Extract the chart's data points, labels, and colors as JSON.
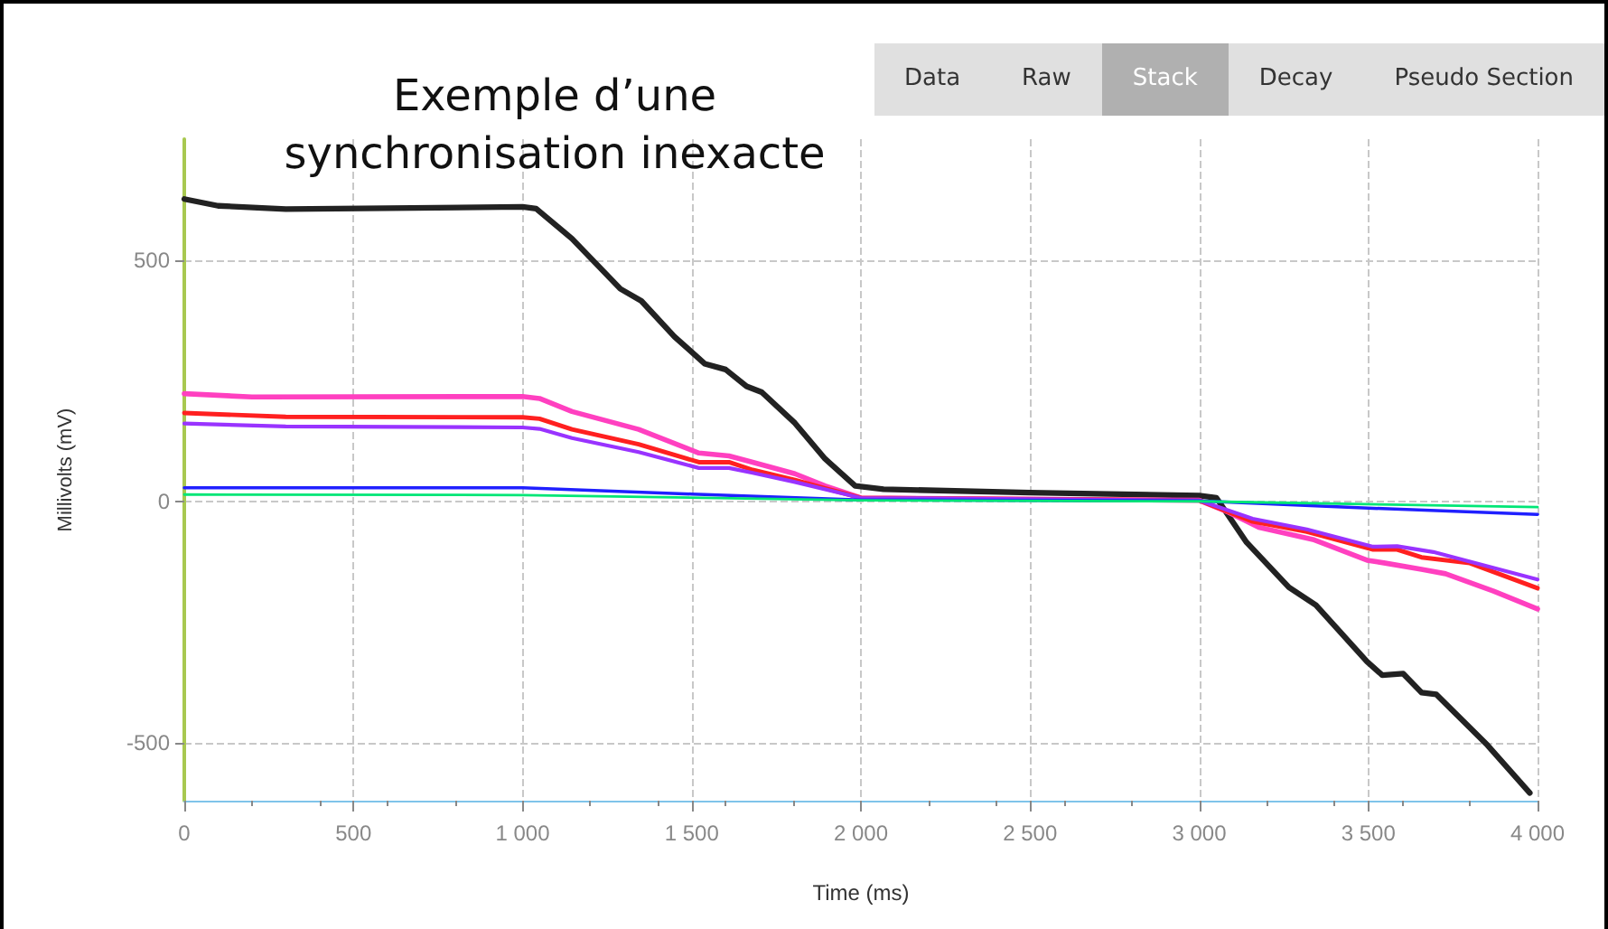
{
  "chart_data": {
    "type": "line",
    "title": "Exemple d’une\nsynchronisation inexacte",
    "xlabel": "Time (ms)",
    "ylabel": "Millivolts (mV)",
    "annotations": [
      "Data",
      "Raw",
      "Stack",
      "Decay",
      "Pseudo Section"
    ],
    "xlim": [
      0,
      4000
    ],
    "xticks": [
      0,
      500,
      {
        "value": 1000,
        "label": "1 000"
      },
      {
        "value": 1500,
        "label": "1 500"
      },
      {
        "value": 2000,
        "label": "2 000"
      },
      {
        "value": 2500,
        "label": "2 500"
      },
      {
        "value": 3000,
        "label": "3 000"
      },
      {
        "value": 3500,
        "label": "3 500"
      },
      {
        "value": 4000,
        "label": "4 000"
      }
    ],
    "ylim": [
      -620,
      750
    ],
    "yticks": [
      -500,
      0,
      500
    ],
    "grid": true,
    "line_style": "solid",
    "marker": "none",
    "series": [
      {
        "color": "#222222",
        "x": [
          0,
          100,
          300,
          600,
          1000,
          1040,
          1146,
          1289,
          1351,
          1449,
          1538,
          1600,
          1662,
          1707,
          1805,
          1894,
          1983,
          2067,
          2500,
          3000,
          3051,
          3140,
          3265,
          3345,
          3496,
          3541,
          3603,
          3657,
          3701,
          3852,
          3977
        ],
        "values": [
          626,
          612,
          605,
          607,
          610,
          606,
          544,
          440,
          415,
          341,
          285,
          273,
          238,
          226,
          162,
          88,
          32,
          25,
          18,
          12,
          7,
          -85,
          -178,
          -215,
          -332,
          -360,
          -357,
          -396,
          -400,
          -505,
          -604
        ]
      },
      {
        "color": "#ff40c0",
        "x": [
          0,
          200,
          1000,
          1050,
          1146,
          1343,
          1521,
          1610,
          1680,
          1805,
          1894,
          2000,
          3000,
          3087,
          3176,
          3336,
          3496,
          3550,
          3657,
          3728,
          3870,
          4000
        ],
        "values": [
          223,
          216,
          217,
          213,
          186,
          149,
          100,
          94,
          81,
          57,
          32,
          7,
          2,
          -23,
          -54,
          -79,
          -122,
          -128,
          -141,
          -150,
          -186,
          -223
        ]
      },
      {
        "color": "#ff2020",
        "x": [
          0,
          300,
          1000,
          1050,
          1146,
          1343,
          1521,
          1610,
          1680,
          1805,
          1894,
          2000,
          3000,
          3158,
          3318,
          3514,
          3585,
          3657,
          3800,
          4000
        ],
        "values": [
          183,
          175,
          174,
          171,
          149,
          118,
          81,
          81,
          65,
          44,
          27,
          7,
          2,
          -42,
          -63,
          -100,
          -100,
          -116,
          -128,
          -180
        ]
      },
      {
        "color": "#9933ff",
        "x": [
          0,
          300,
          1000,
          1050,
          1146,
          1343,
          1521,
          1610,
          1680,
          1805,
          2000,
          3000,
          3158,
          3318,
          3514,
          3585,
          3692,
          4000
        ],
        "values": [
          161,
          155,
          153,
          150,
          131,
          102,
          69,
          69,
          59,
          40,
          7,
          2,
          -36,
          -58,
          -94,
          -93,
          -105,
          -162
        ]
      },
      {
        "color": "#2020ff",
        "x": [
          0,
          1000,
          1500,
          2000,
          3000,
          3500,
          4000
        ],
        "values": [
          28,
          28,
          15,
          3,
          1,
          -14,
          -27
        ]
      },
      {
        "color": "#00e676",
        "x": [
          0,
          1000,
          2000,
          3000,
          4000
        ],
        "values": [
          14,
          13,
          2,
          0,
          -12
        ]
      }
    ]
  }
}
